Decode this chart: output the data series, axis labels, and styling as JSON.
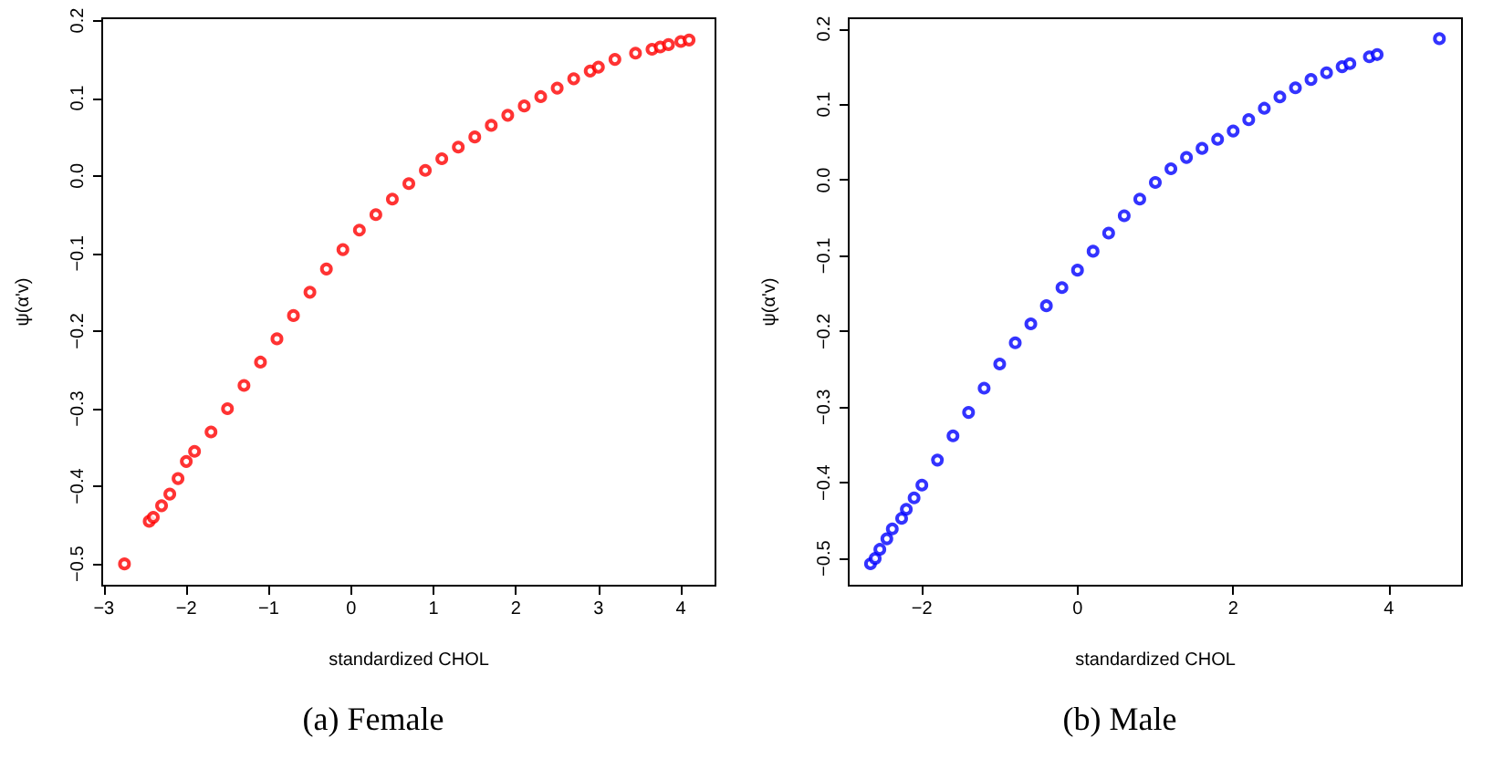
{
  "chart_data": [
    {
      "type": "scatter",
      "title": "(a) Female",
      "xlabel": "standardized CHOL",
      "ylabel": "ψ(α'v)",
      "marker": "circle",
      "grid": false,
      "series": [
        {
          "color": "#ff0000",
          "x": [
            -2.75,
            -2.45,
            -2.4,
            -2.3,
            -2.2,
            -2.1,
            -2.0,
            -1.9,
            -1.7,
            -1.5,
            -1.3,
            -1.1,
            -0.9,
            -0.7,
            -0.5,
            -0.3,
            -0.1,
            0.1,
            0.3,
            0.5,
            0.7,
            0.9,
            1.1,
            1.3,
            1.5,
            1.7,
            1.9,
            2.1,
            2.3,
            2.5,
            2.7,
            2.9,
            3.0,
            3.2,
            3.45,
            3.65,
            3.75,
            3.85,
            4.0,
            4.1
          ],
          "values": [
            -0.5,
            -0.445,
            -0.44,
            -0.425,
            -0.41,
            -0.39,
            -0.368,
            -0.355,
            -0.33,
            -0.3,
            -0.27,
            -0.24,
            -0.21,
            -0.18,
            -0.15,
            -0.12,
            -0.095,
            -0.07,
            -0.05,
            -0.03,
            -0.01,
            0.007,
            0.022,
            0.037,
            0.05,
            0.065,
            0.078,
            0.09,
            0.102,
            0.113,
            0.125,
            0.135,
            0.14,
            0.15,
            0.158,
            0.163,
            0.166,
            0.169,
            0.173,
            0.175
          ]
        }
      ],
      "xlim": [
        -3.02,
        4.42
      ],
      "ylim": [
        -0.528,
        0.203
      ],
      "xticks": [
        {
          "value": -3,
          "label": "−3"
        },
        {
          "value": -2,
          "label": "−2"
        },
        {
          "value": -1,
          "label": "−1"
        },
        0,
        1,
        2,
        3,
        4
      ],
      "yticks": [
        {
          "value": -0.5,
          "label": "−0.5"
        },
        {
          "value": -0.4,
          "label": "−0.4"
        },
        {
          "value": -0.3,
          "label": "−0.3"
        },
        {
          "value": -0.2,
          "label": "−0.2"
        },
        {
          "value": -0.1,
          "label": "−0.1"
        },
        {
          "value": 0,
          "label": "0.0"
        },
        {
          "value": 0.1,
          "label": "0.1"
        },
        {
          "value": 0.2,
          "label": "0.2"
        }
      ]
    },
    {
      "type": "scatter",
      "title": "(b) Male",
      "xlabel": "standardized CHOL",
      "ylabel": "ψ(α'v)",
      "marker": "circle",
      "grid": false,
      "series": [
        {
          "color": "#0000ff",
          "x": [
            -2.66,
            -2.6,
            -2.54,
            -2.45,
            -2.38,
            -2.26,
            -2.2,
            -2.1,
            -2.0,
            -1.8,
            -1.6,
            -1.4,
            -1.2,
            -1.0,
            -0.8,
            -0.6,
            -0.4,
            -0.2,
            0,
            0.2,
            0.4,
            0.6,
            0.8,
            1.0,
            1.2,
            1.4,
            1.6,
            1.8,
            2.0,
            2.2,
            2.4,
            2.6,
            2.8,
            3.0,
            3.2,
            3.4,
            3.5,
            3.75,
            3.85,
            4.65
          ],
          "values": [
            -0.507,
            -0.5,
            -0.488,
            -0.474,
            -0.461,
            -0.447,
            -0.435,
            -0.42,
            -0.403,
            -0.37,
            -0.338,
            -0.307,
            -0.275,
            -0.243,
            -0.215,
            -0.19,
            -0.166,
            -0.142,
            -0.119,
            -0.094,
            -0.07,
            -0.047,
            -0.025,
            -0.003,
            0.015,
            0.03,
            0.042,
            0.054,
            0.065,
            0.08,
            0.095,
            0.11,
            0.122,
            0.133,
            0.142,
            0.15,
            0.154,
            0.163,
            0.166,
            0.187
          ]
        }
      ],
      "xlim": [
        -2.94,
        4.94
      ],
      "ylim": [
        -0.536,
        0.214
      ],
      "xticks": [
        {
          "value": -2,
          "label": "−2"
        },
        0,
        2,
        4
      ],
      "yticks": [
        {
          "value": -0.5,
          "label": "−0.5"
        },
        {
          "value": -0.4,
          "label": "−0.4"
        },
        {
          "value": -0.3,
          "label": "−0.3"
        },
        {
          "value": -0.2,
          "label": "−0.2"
        },
        {
          "value": -0.1,
          "label": "−0.1"
        },
        {
          "value": 0,
          "label": "0.0"
        },
        {
          "value": 0.1,
          "label": "0.1"
        },
        {
          "value": 0.2,
          "label": "0.2"
        }
      ]
    }
  ]
}
